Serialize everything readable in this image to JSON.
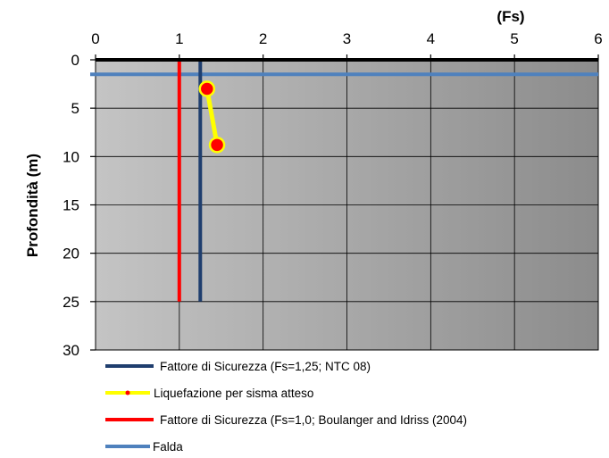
{
  "chart_data": {
    "type": "line",
    "xlabel": "(Fs)",
    "ylabel": "Profondità (m)",
    "xlim": [
      0,
      6
    ],
    "ylim": [
      0,
      30
    ],
    "y_inverted": true,
    "x_axis_position": "top",
    "xticks": [
      "0",
      "1",
      "2",
      "3",
      "4",
      "5",
      "6"
    ],
    "yticks": [
      "0",
      "5",
      "10",
      "15",
      "20",
      "25",
      "30"
    ],
    "grid": true,
    "legend_position": "bottom",
    "series": [
      {
        "name": "Fattore di Sicurezza (Fs=1,25; NTC 08)",
        "color": "#1f3e6e",
        "marker": false,
        "points": [
          [
            1.25,
            0
          ],
          [
            1.25,
            25
          ]
        ]
      },
      {
        "name": "Liquefazione per sisma atteso",
        "color": "#ffff00",
        "marker": true,
        "marker_color": "#ff0000",
        "points": [
          [
            1.33,
            3
          ],
          [
            1.45,
            8.8
          ]
        ]
      },
      {
        "name": "Fattore di Sicurezza (Fs=1,0; Boulanger and Idriss (2004)",
        "color": "#ff0000",
        "marker": false,
        "points": [
          [
            1.0,
            0
          ],
          [
            1.0,
            25
          ]
        ]
      },
      {
        "name": "Falda",
        "color": "#4f81bd",
        "marker": false,
        "points": [
          [
            -0.2,
            1.5
          ],
          [
            6.0,
            1.5
          ]
        ]
      }
    ]
  }
}
